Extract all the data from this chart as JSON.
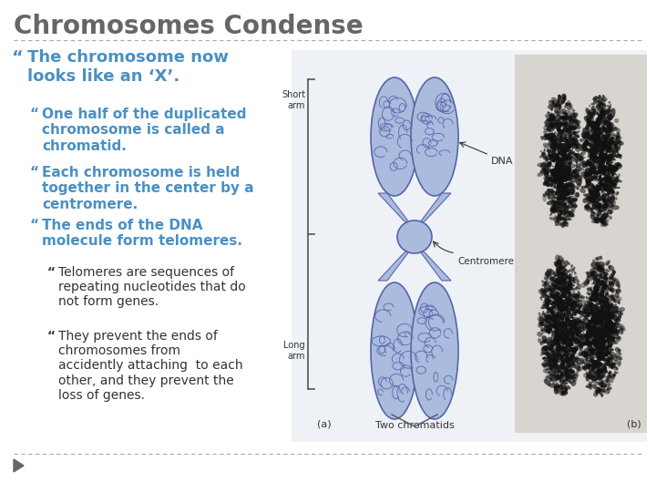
{
  "title": "Chromosomes Condense",
  "title_fontsize": 20,
  "title_color": "#666666",
  "background_color": "#ffffff",
  "bullet_color": "#4a90c4",
  "sub_sub_bullet_color": "#333333",
  "separator_color": "#aaaaaa",
  "bullet_marker": "“",
  "bullet1": "The chromosome now\nlooks like an ‘X’.",
  "bullet1_fontsize": 13,
  "bullets_level2": [
    "One half of the duplicated\nchromosome is called a\nchromatid.",
    "Each chromosome is held\ntogether in the center by a\ncentromere.",
    "The ends of the DNA\nmolecule form telomeres."
  ],
  "bullets_level2_fontsize": 11,
  "bullets_level3": [
    "Telomeres are sequences of\nrepeating nucleotides that do\nnot form genes.",
    "They prevent the ends of\nchromosomes from\naccidently attaching  to each\nother, and they prevent the\nloss of genes."
  ],
  "bullets_level3_fontsize": 10,
  "chrom_fill": "#8899cc",
  "chrom_fill_light": "#aabbdd",
  "chrom_edge": "#5566aa",
  "label_color": "#333333",
  "photo_bg": "#c0bdb8",
  "nav_arrow_color": "#666666"
}
